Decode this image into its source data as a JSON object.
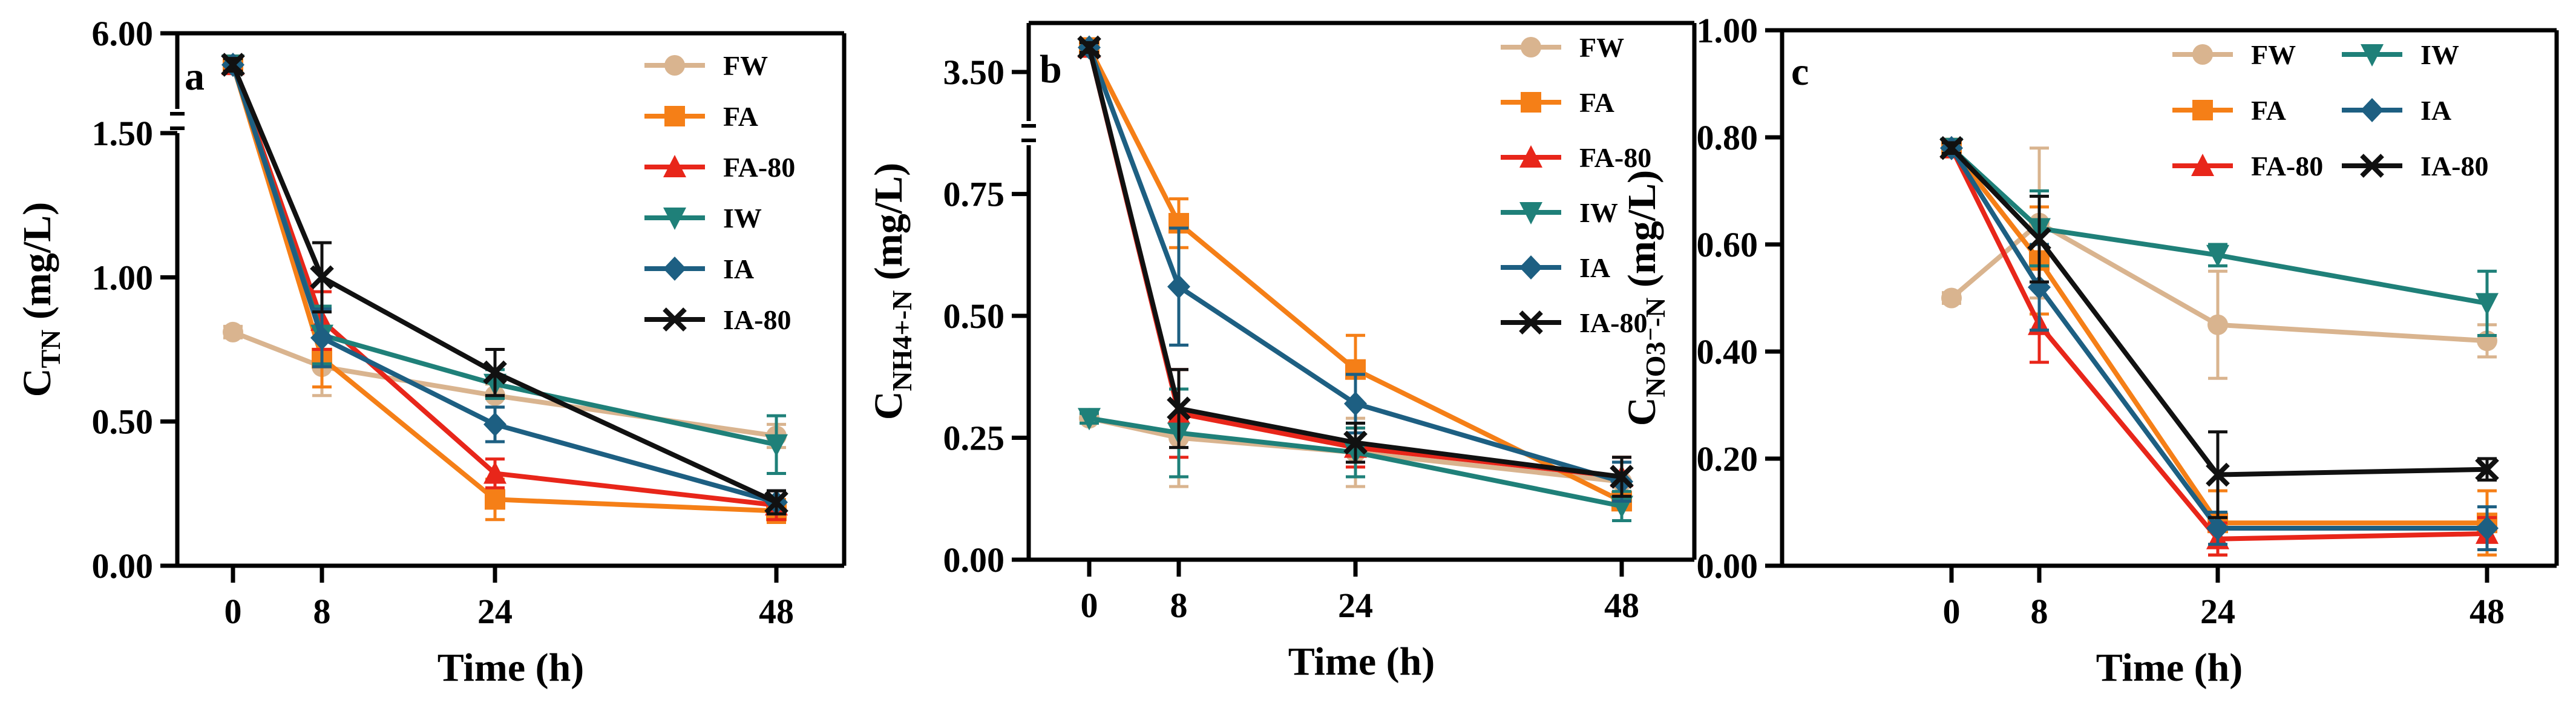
{
  "colors": {
    "FW": "#d9b48f",
    "FA": "#f57f17",
    "FA-80": "#e8261a",
    "IW": "#1f8079",
    "IA": "#1d5f82",
    "IA-80": "#111111"
  },
  "markers": {
    "FW": "circle",
    "FA": "square",
    "FA-80": "triangle-up",
    "IW": "triangle-down",
    "IA": "diamond",
    "IA-80": "x"
  },
  "chart_data": [
    {
      "type": "line",
      "panel": "a",
      "xlabel": "Time (h)",
      "ylabel_main": "C",
      "ylabel_sub": "TN",
      "ylabel_unit": " (mg/L)",
      "x": [
        0,
        8,
        24,
        48
      ],
      "x_ticks": [
        "0",
        "8",
        "24",
        "48"
      ],
      "y_axis_break": {
        "lower_max": 1.5,
        "upper_min": 1.5,
        "upper_max": 6.0
      },
      "y_ticks": [
        "0.00",
        "0.50",
        "1.00",
        "1.50",
        "6.00"
      ],
      "series": [
        {
          "name": "FW",
          "values": [
            0.81,
            0.69,
            0.59,
            0.45
          ],
          "errors": [
            0.02,
            0.1,
            0.04,
            0.04
          ]
        },
        {
          "name": "FA",
          "values": [
            5.75,
            0.72,
            0.23,
            0.19
          ],
          "errors": [
            0.05,
            0.1,
            0.07,
            0.04
          ]
        },
        {
          "name": "FA-80",
          "values": [
            5.75,
            0.85,
            0.32,
            0.21
          ],
          "errors": [
            0.05,
            0.1,
            0.05,
            0.05
          ]
        },
        {
          "name": "IW",
          "values": [
            5.75,
            0.8,
            0.63,
            0.42
          ],
          "errors": [
            0.05,
            0.1,
            0.05,
            0.1
          ]
        },
        {
          "name": "IA",
          "values": [
            5.75,
            0.79,
            0.49,
            0.22
          ],
          "errors": [
            0.05,
            0.1,
            0.06,
            0.04
          ]
        },
        {
          "name": "IA-80",
          "values": [
            5.75,
            1.0,
            0.67,
            0.22
          ],
          "errors": [
            0.05,
            0.12,
            0.08,
            0.04
          ]
        }
      ]
    },
    {
      "type": "line",
      "panel": "b",
      "xlabel": "Time (h)",
      "ylabel_main": "C",
      "ylabel_sub": "NH4+-N",
      "ylabel_unit": "  (mg/L)",
      "x": [
        0,
        8,
        24,
        48
      ],
      "x_ticks": [
        "0",
        "8",
        "24",
        "48"
      ],
      "y_axis_break": {
        "lower_max": 0.85,
        "upper_min": 3.4,
        "upper_max": 3.6
      },
      "y_ticks": [
        "0.00",
        "0.25",
        "0.50",
        "0.75",
        "3.50"
      ],
      "series": [
        {
          "name": "FW",
          "values": [
            0.29,
            0.25,
            0.22,
            0.16
          ],
          "errors": [
            0.01,
            0.1,
            0.07,
            0.05
          ]
        },
        {
          "name": "FA",
          "values": [
            3.55,
            0.69,
            0.39,
            0.12
          ],
          "errors": [
            0.01,
            0.05,
            0.07,
            0.04
          ]
        },
        {
          "name": "FA-80",
          "values": [
            3.55,
            0.3,
            0.23,
            0.17
          ],
          "errors": [
            0.01,
            0.09,
            0.04,
            0.04
          ]
        },
        {
          "name": "IW",
          "values": [
            0.29,
            0.26,
            0.22,
            0.11
          ],
          "errors": [
            0.01,
            0.09,
            0.05,
            0.03
          ]
        },
        {
          "name": "IA",
          "values": [
            3.55,
            0.56,
            0.32,
            0.16
          ],
          "errors": [
            0.01,
            0.12,
            0.06,
            0.04
          ]
        },
        {
          "name": "IA-80",
          "values": [
            3.55,
            0.31,
            0.24,
            0.17
          ],
          "errors": [
            0.01,
            0.08,
            0.04,
            0.04
          ]
        }
      ]
    },
    {
      "type": "line",
      "panel": "c",
      "xlabel": "Time (h)",
      "ylabel_main": "C",
      "ylabel_sub": "NO3⁻-N",
      "ylabel_unit": "  (mg/L)",
      "x": [
        0,
        8,
        24,
        48
      ],
      "x_ticks": [
        "0",
        "8",
        "24",
        "48"
      ],
      "ylim": [
        0,
        1.0
      ],
      "y_ticks": [
        "0.00",
        "0.20",
        "0.40",
        "0.60",
        "0.80",
        "1.00"
      ],
      "series": [
        {
          "name": "FW",
          "values": [
            0.5,
            0.64,
            0.45,
            0.42
          ],
          "errors": [
            0.01,
            0.14,
            0.1,
            0.03
          ]
        },
        {
          "name": "FA",
          "values": [
            0.78,
            0.57,
            0.08,
            0.08
          ],
          "errors": [
            0.01,
            0.1,
            0.06,
            0.06
          ]
        },
        {
          "name": "FA-80",
          "values": [
            0.78,
            0.45,
            0.05,
            0.06
          ],
          "errors": [
            0.01,
            0.07,
            0.03,
            0.03
          ]
        },
        {
          "name": "IW",
          "values": [
            0.78,
            0.63,
            0.58,
            0.49
          ],
          "errors": [
            0.01,
            0.07,
            0.02,
            0.06
          ]
        },
        {
          "name": "IA",
          "values": [
            0.78,
            0.52,
            0.07,
            0.07
          ],
          "errors": [
            0.01,
            0.08,
            0.03,
            0.04
          ]
        },
        {
          "name": "IA-80",
          "values": [
            0.78,
            0.61,
            0.17,
            0.18
          ],
          "errors": [
            0.01,
            0.08,
            0.08,
            0.02
          ]
        }
      ]
    }
  ]
}
